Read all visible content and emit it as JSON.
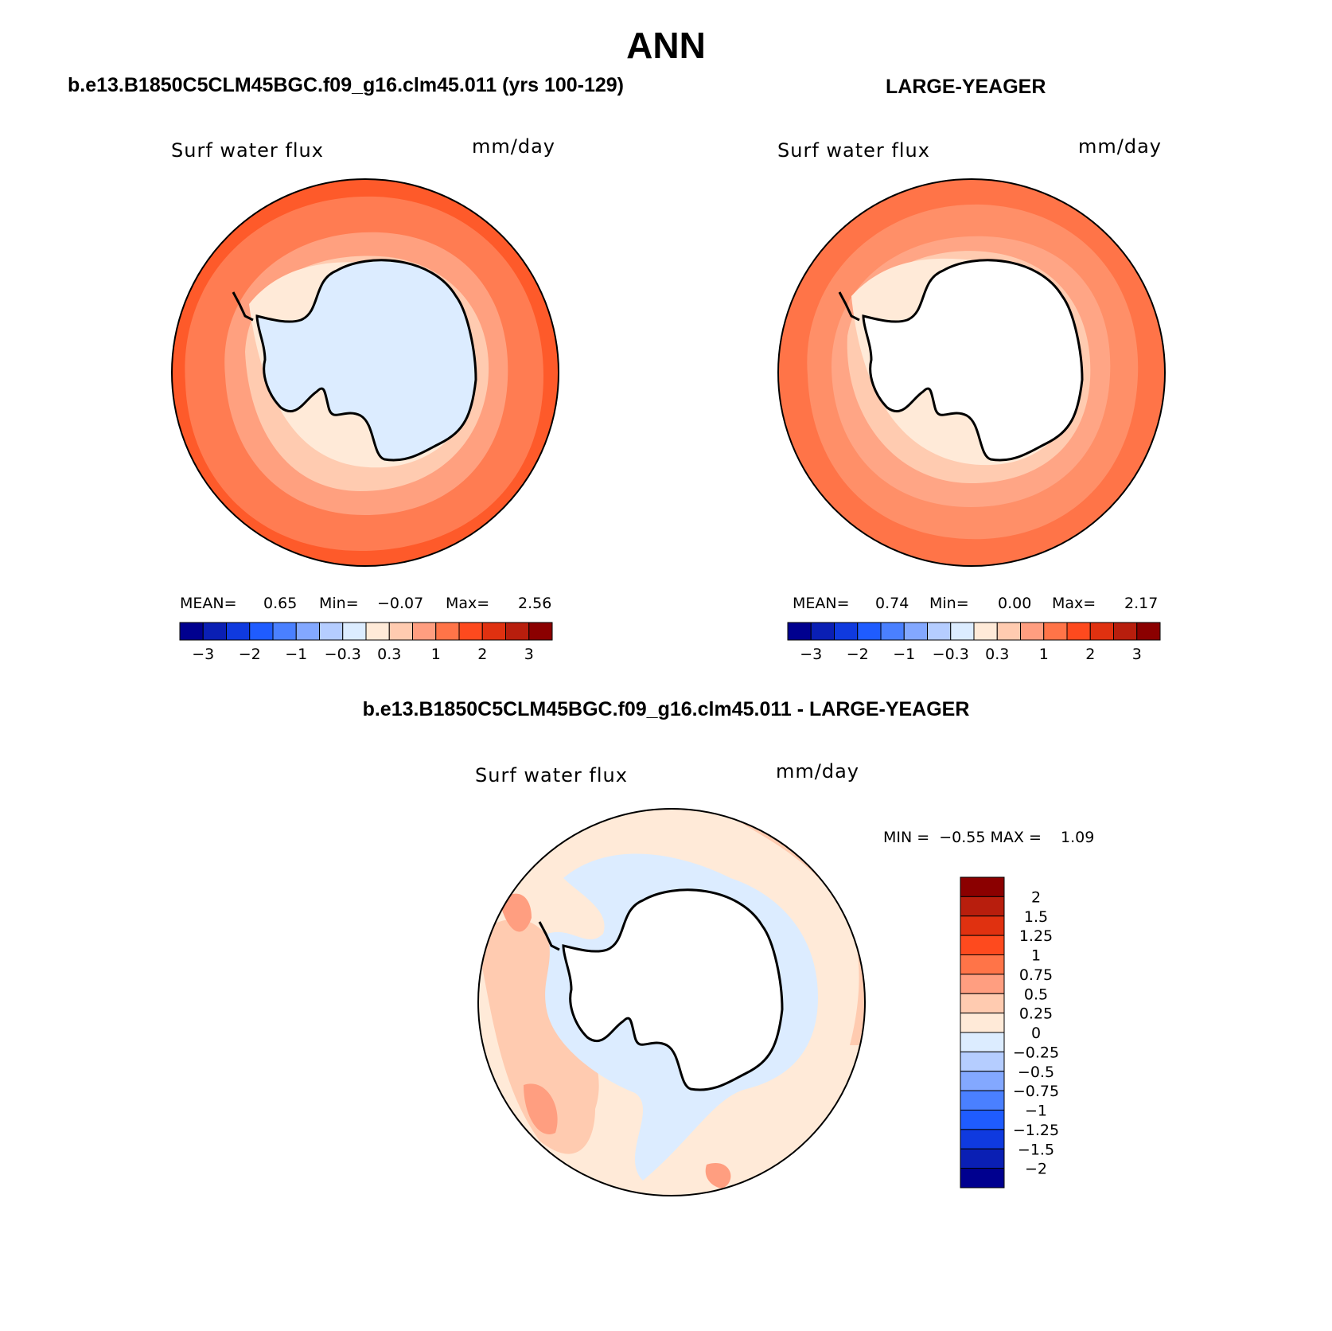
{
  "header": {
    "title": "ANN",
    "left_case": "b.e13.B1850C5CLM45BGC.f09_g16.clm45.011 (yrs 100-129)",
    "right_case": "LARGE-YEAGER",
    "diff_case": "b.e13.B1850C5CLM45BGC.f09_g16.clm45.011 - LARGE-YEAGER"
  },
  "panels": {
    "model": {
      "variable": "Surf water flux",
      "units": "mm/day",
      "mean_label": "MEAN=",
      "mean": "0.65",
      "min_label": "Min=",
      "min": "−0.07",
      "max_label": "Max=",
      "max": "2.56"
    },
    "obs": {
      "variable": "Surf water flux",
      "units": "mm/day",
      "mean_label": "MEAN=",
      "mean": "0.74",
      "min_label": "Min=",
      "min": "0.00",
      "max_label": "Max=",
      "max": "2.17"
    },
    "diff": {
      "variable": "Surf water flux",
      "units": "mm/day",
      "minmax": "MIN =  −0.55 MAX =    1.09"
    }
  },
  "colorbar_main": {
    "colors": [
      "#00008f",
      "#0a1fb4",
      "#0f3adf",
      "#1f5cff",
      "#4a80ff",
      "#83a8ff",
      "#b5cdff",
      "#dcecff",
      "#ffead8",
      "#ffcbb0",
      "#ff9e80",
      "#ff7448",
      "#fe4a1e",
      "#e03110",
      "#b81e0d",
      "#8b0000"
    ],
    "tick_labels": [
      "−3",
      "−2",
      "−1",
      "−0.3",
      "0.3",
      "1",
      "2",
      "3"
    ]
  },
  "colorbar_diff": {
    "colors_top_to_bottom": [
      "#8b0000",
      "#b81e0d",
      "#e03110",
      "#fe4a1e",
      "#ff7448",
      "#ff9e80",
      "#ffcbb0",
      "#ffead8",
      "#dcecff",
      "#b5cdff",
      "#83a8ff",
      "#4a80ff",
      "#1f5cff",
      "#0f3adf",
      "#0a1fb4",
      "#00008f"
    ],
    "tick_labels": [
      "2",
      "1.5",
      "1.25",
      "1",
      "0.75",
      "0.5",
      "0.25",
      "0",
      "−0.25",
      "−0.5",
      "−0.75",
      "−1",
      "−1.25",
      "−1.5",
      "−2"
    ]
  },
  "fields": {
    "model": {
      "outer": "#fe5a2a",
      "ring1": "#ff7c52",
      "ring2": "#ffa07f",
      "ring3": "#ffcbb0",
      "ring4": "#ffead8",
      "land": "#dcecff"
    },
    "obs": {
      "outer": "#ff7448",
      "ring1": "#ff8f68",
      "ring2": "#ffa585",
      "ring3": "#ffcbb0",
      "ring4": "#ffead8",
      "land": "#ffffff"
    },
    "diff": {
      "outer": "#ffead8",
      "ring1": "#ffcbb0",
      "ring2": "#ff9e80",
      "ring3": "#dcecff",
      "ring4": "#b5cdff",
      "land": "#ffffff"
    }
  }
}
